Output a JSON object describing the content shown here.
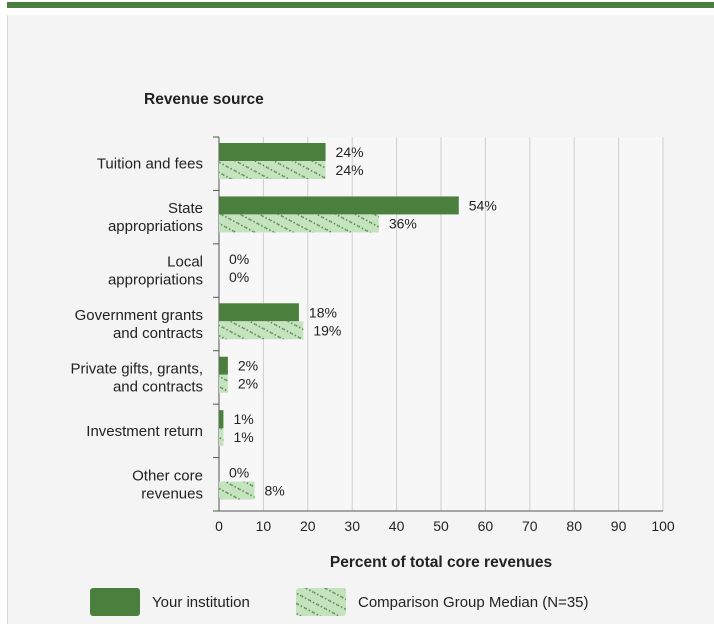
{
  "chart_data": {
    "type": "bar",
    "orientation": "horizontal",
    "title": "Revenue source",
    "xlabel": "Percent of total core revenues",
    "xlim": [
      0,
      100
    ],
    "xticks": [
      0,
      10,
      20,
      30,
      40,
      50,
      60,
      70,
      80,
      90,
      100
    ],
    "grid": true,
    "legend_position": "bottom",
    "categories": [
      [
        "Tuition and fees"
      ],
      [
        "State",
        "appropriations"
      ],
      [
        "Local",
        "appropriations"
      ],
      [
        "Government grants",
        "and contracts"
      ],
      [
        "Private gifts, grants,",
        "and contracts"
      ],
      [
        "Investment return"
      ],
      [
        "Other core",
        "revenues"
      ]
    ],
    "series": [
      {
        "name": "Your institution",
        "values": [
          24,
          54,
          0,
          18,
          2,
          1,
          0
        ],
        "labels": [
          "24%",
          "54%",
          "0%",
          "18%",
          "2%",
          "1%",
          "0%"
        ]
      },
      {
        "name": "Comparison Group Median (N=35)",
        "values": [
          24,
          36,
          0,
          19,
          2,
          1,
          8
        ],
        "labels": [
          "24%",
          "36%",
          "0%",
          "19%",
          "2%",
          "1%",
          "8%"
        ]
      }
    ],
    "colors": {
      "institution": "#4a7f3e",
      "comparison": "#c6e3c0",
      "comparison_hatch": "#4a7f3e",
      "grid": "#cfcfcf",
      "plot_bg": "#f7f7f7"
    }
  }
}
